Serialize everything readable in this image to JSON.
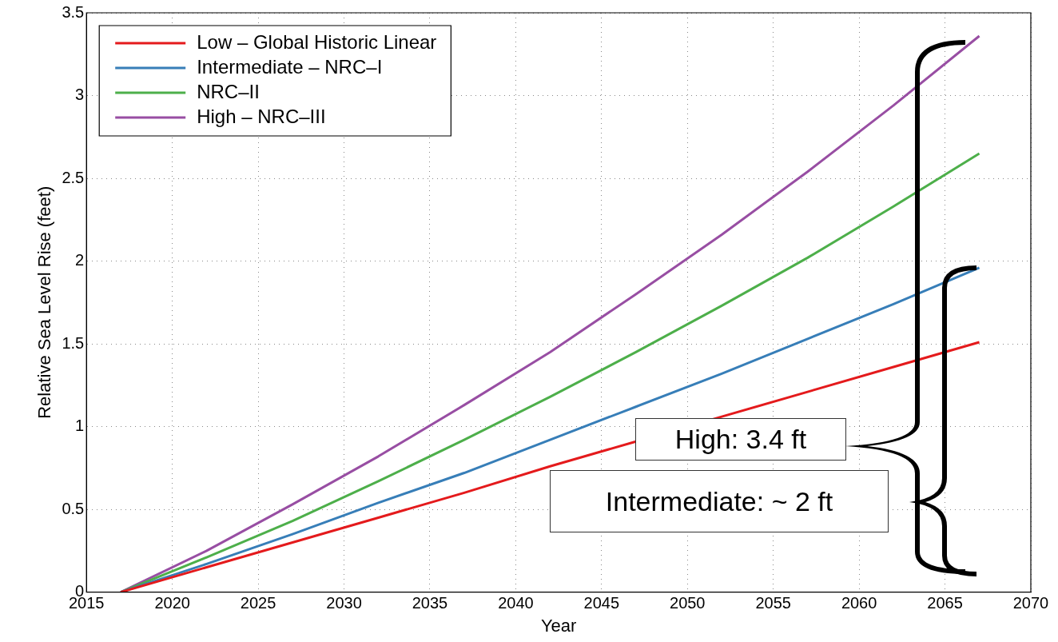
{
  "chart_data": {
    "type": "line",
    "xlabel": "Year",
    "ylabel": "Relative Sea Level Rise (feet)",
    "x": [
      2017,
      2022,
      2027,
      2032,
      2037,
      2042,
      2047,
      2052,
      2057,
      2062,
      2067
    ],
    "series": [
      {
        "name": "Low – Global Historic Linear",
        "color": "#e41a1c",
        "values": [
          0,
          0.15,
          0.3,
          0.45,
          0.6,
          0.76,
          0.91,
          1.06,
          1.21,
          1.36,
          1.51
        ]
      },
      {
        "name": "Intermediate – NRC–I",
        "color": "#377eb8",
        "values": [
          0,
          0.17,
          0.35,
          0.54,
          0.72,
          0.92,
          1.12,
          1.32,
          1.53,
          1.74,
          1.96
        ]
      },
      {
        "name": "NRC–II",
        "color": "#4daf4a",
        "values": [
          0,
          0.21,
          0.43,
          0.67,
          0.92,
          1.18,
          1.45,
          1.73,
          2.02,
          2.33,
          2.65
        ]
      },
      {
        "name": "High – NRC–III",
        "color": "#984ea3",
        "values": [
          0,
          0.25,
          0.53,
          0.82,
          1.13,
          1.45,
          1.8,
          2.16,
          2.54,
          2.94,
          3.36
        ]
      }
    ],
    "xlim": [
      2015,
      2070
    ],
    "xticks": [
      2015,
      2020,
      2025,
      2030,
      2035,
      2040,
      2045,
      2050,
      2055,
      2060,
      2065,
      2070
    ],
    "ylim": [
      0,
      3.5
    ],
    "yticks": [
      0,
      0.5,
      1,
      1.5,
      2,
      2.5,
      3,
      3.5
    ],
    "grid": true,
    "legend": "top left",
    "marker": "none",
    "line_style": "solid",
    "annotations": [
      "High: 3.4 ft",
      "Intermediate: ~ 2 ft"
    ]
  }
}
